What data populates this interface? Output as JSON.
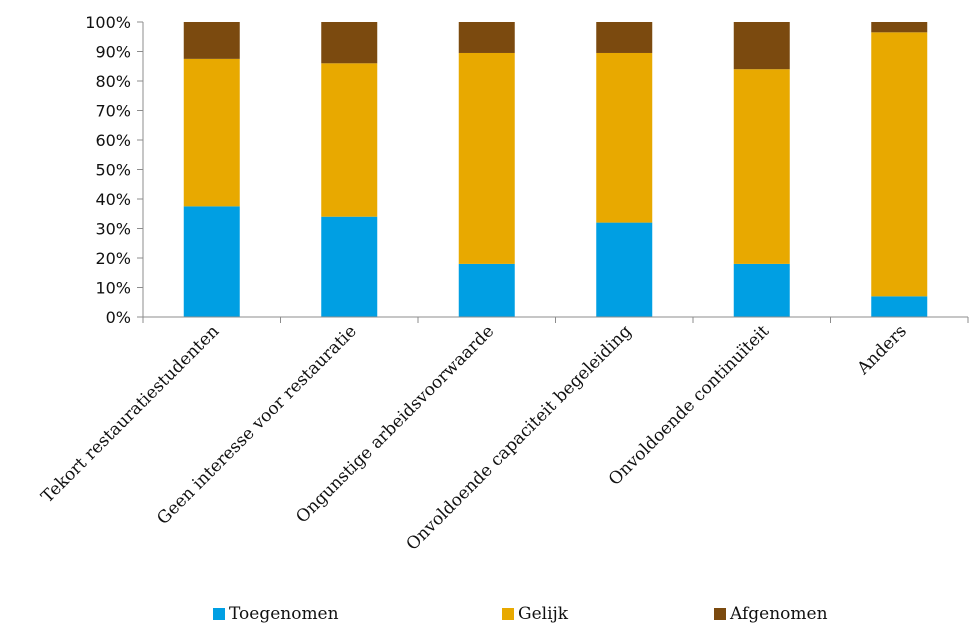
{
  "chart_data": {
    "type": "bar",
    "stacked": true,
    "percent": true,
    "categories": [
      "Tekort restauratiestudenten",
      "Geen interesse voor restauratie",
      "Ongunstige arbeidsvoorwaarde",
      "Onvoldoende capaciteit begeleiding",
      "Onvoldoende continuïteit",
      "Anders"
    ],
    "series": [
      {
        "name": "Toegenomen",
        "color": "#009fe3",
        "values": [
          37.5,
          34,
          18,
          32,
          18,
          7
        ]
      },
      {
        "name": "Gelijk",
        "color": "#e8a900",
        "values": [
          50,
          52,
          71.5,
          57.5,
          66,
          89.5
        ]
      },
      {
        "name": "Afgenomen",
        "color": "#7b4a0f",
        "values": [
          12.5,
          14,
          10.5,
          10.5,
          16,
          3.5
        ]
      }
    ],
    "y_ticks": [
      "0%",
      "10%",
      "20%",
      "30%",
      "40%",
      "50%",
      "60%",
      "70%",
      "80%",
      "90%",
      "100%"
    ],
    "ylim": [
      0,
      100
    ],
    "grid": false,
    "legend_position": "bottom"
  }
}
